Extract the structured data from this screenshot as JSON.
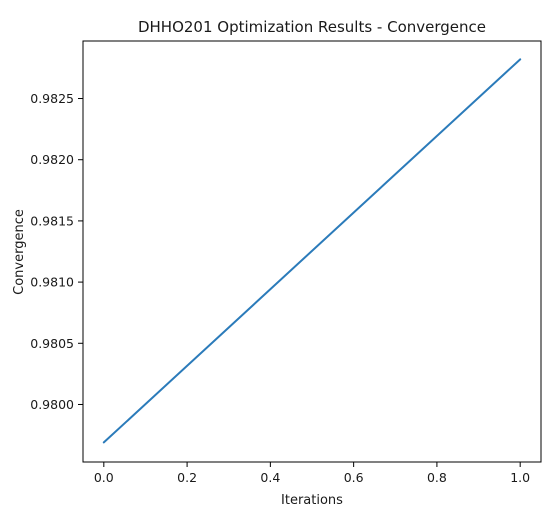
{
  "chart_data": {
    "type": "line",
    "title": "DHHO201 Optimization Results - Convergence",
    "xlabel": "Iterations",
    "ylabel": "Convergence",
    "x": [
      0.0,
      1.0
    ],
    "series": [
      {
        "values": [
          0.97969,
          0.98282
        ],
        "color": "#2b7bba"
      }
    ],
    "xlim": [
      -0.05,
      1.05
    ],
    "ylim": [
      0.97953,
      0.98297
    ],
    "xticks": [
      0.0,
      0.2,
      0.4,
      0.6,
      0.8,
      1.0
    ],
    "xtick_labels": [
      "0.0",
      "0.2",
      "0.4",
      "0.6",
      "0.8",
      "1.0"
    ],
    "yticks": [
      0.98,
      0.9805,
      0.981,
      0.9815,
      0.982,
      0.9825
    ],
    "ytick_labels": [
      "0.9800",
      "0.9805",
      "0.9810",
      "0.9815",
      "0.9820",
      "0.9825"
    ],
    "grid": false,
    "legend": false
  }
}
